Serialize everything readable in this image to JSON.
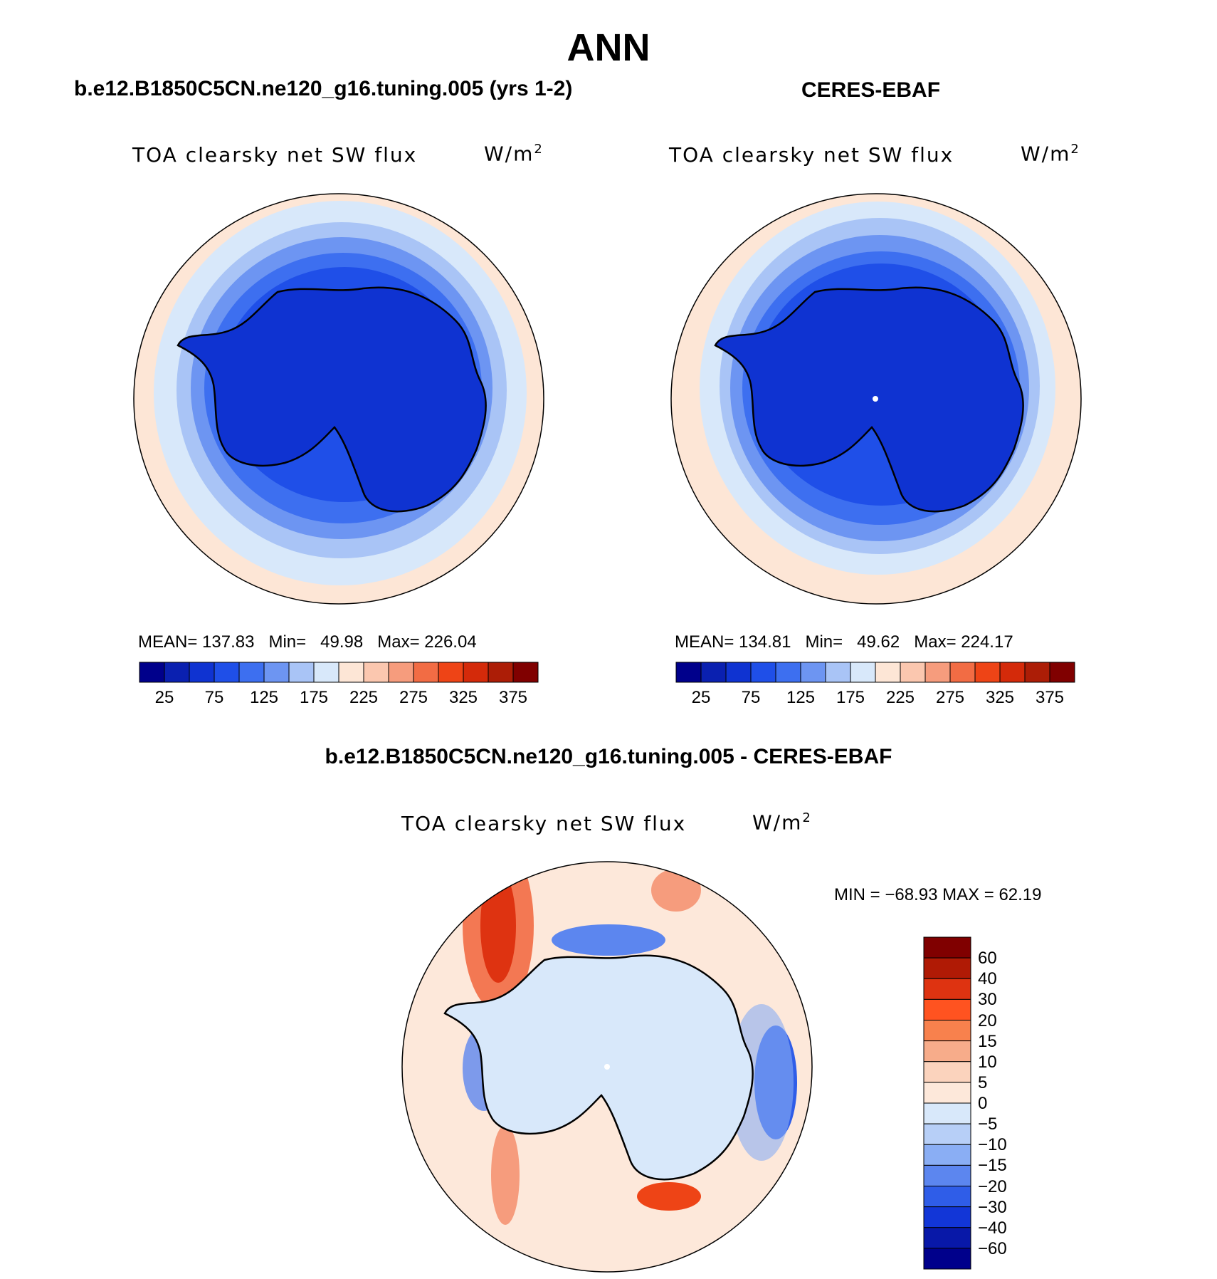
{
  "season": "ANN",
  "panels": {
    "model": {
      "title": "b.e12.B1850C5CN.ne120_g16.tuning.005 (yrs 1-2)",
      "variable": "TOA clearsky net SW flux",
      "units_base": "W/m",
      "units_exp": "2",
      "stats": {
        "mean_label": "MEAN=",
        "mean": "137.83",
        "min_label": "Min=",
        "min": "49.98",
        "max_label": "Max=",
        "max": "226.04"
      }
    },
    "obs": {
      "title": "CERES-EBAF",
      "variable": "TOA clearsky net SW flux",
      "units_base": "W/m",
      "units_exp": "2",
      "stats": {
        "mean_label": "MEAN=",
        "mean": "134.81",
        "min_label": "Min=",
        "min": "49.62",
        "max_label": "Max=",
        "max": "224.17"
      }
    },
    "diff": {
      "title": "b.e12.B1850C5CN.ne120_g16.tuning.005 - CERES-EBAF",
      "variable": "TOA clearsky net SW flux",
      "units_base": "W/m",
      "units_exp": "2",
      "range_text": "MIN = −68.93 MAX =   62.19"
    }
  },
  "colorbar_main": {
    "colors": [
      "#00008b",
      "#0a20b0",
      "#0f33d1",
      "#1f4fe8",
      "#3d6ff0",
      "#6d95f2",
      "#a9c4f6",
      "#d8e8fa",
      "#fde6d6",
      "#fbc7af",
      "#f69c7d",
      "#f26c44",
      "#ee4416",
      "#d42a0a",
      "#ac1d06",
      "#800000"
    ],
    "labels": [
      "25",
      "75",
      "125",
      "175",
      "225",
      "275",
      "325",
      "375"
    ]
  },
  "colorbar_diff": {
    "colors": [
      "#800000",
      "#b01a05",
      "#de3311",
      "#ff5320",
      "#f8814d",
      "#f7ac8a",
      "#fbd3bd",
      "#fde8da",
      "#d8e8fa",
      "#b7cff7",
      "#8aaef4",
      "#5c86ef",
      "#2f5de8",
      "#1236d7",
      "#0818a8",
      "#00008b"
    ],
    "labels": [
      "60",
      "40",
      "30",
      "20",
      "15",
      "10",
      "5",
      "0",
      "−5",
      "−10",
      "−15",
      "−20",
      "−30",
      "−40",
      "−60"
    ]
  },
  "map_colors": {
    "ocean_outer": "#fde6d6",
    "ring1": "#d8e8fa",
    "ring2": "#a9c4f6",
    "ring3": "#6d95f2",
    "ring4": "#3d6ff0",
    "ring5": "#1f4fe8",
    "ice": "#0f33d1",
    "diff_bg": "#fde8da",
    "diff_land": "#d8e8fa",
    "diff_red": "#ee4416",
    "diff_lightred": "#f7ac8a",
    "diff_blue": "#2f5de8",
    "diff_lightblue": "#b7cff7"
  }
}
